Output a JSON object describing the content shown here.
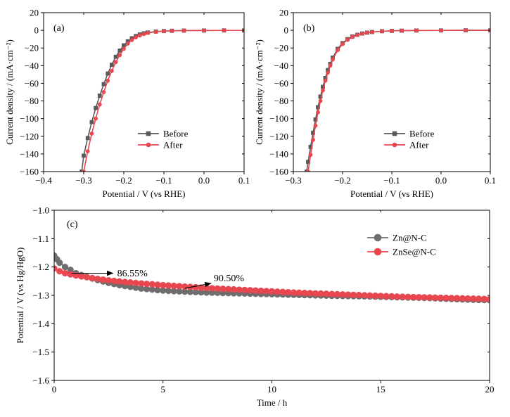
{
  "chart_data": [
    {
      "panel_label": "(a)",
      "type": "line",
      "xlabel": "Potential / V (vs RHE)",
      "ylabel": "Current density / (mA·cm⁻²)",
      "xlim": [
        -0.4,
        0.1
      ],
      "ylim": [
        -160,
        20
      ],
      "xticks": [
        -0.4,
        -0.3,
        -0.2,
        -0.1,
        0.0,
        0.1
      ],
      "xtick_labels": [
        "−0.4",
        "−0.3",
        "−0.2",
        "−0.1",
        "0.0",
        "0.1"
      ],
      "yticks": [
        20,
        0,
        -20,
        -40,
        -60,
        -80,
        -100,
        -120,
        -140,
        -160
      ],
      "ytick_labels": [
        "20",
        "0",
        "−20",
        "−40",
        "−60",
        "−80",
        "−100",
        "−120",
        "−140",
        "−160"
      ],
      "legend_position": "bottom-center",
      "grid": false,
      "series": [
        {
          "name": "Before",
          "color": "#5a5a5a",
          "marker": "square",
          "x": [
            -0.305,
            -0.3,
            -0.29,
            -0.28,
            -0.27,
            -0.26,
            -0.25,
            -0.24,
            -0.23,
            -0.22,
            -0.21,
            -0.2,
            -0.19,
            -0.18,
            -0.17,
            -0.16,
            -0.15,
            -0.14,
            -0.12,
            -0.1,
            -0.08,
            -0.05,
            0.0,
            0.05,
            0.1
          ],
          "y": [
            -160,
            -142,
            -122,
            -104,
            -88,
            -74,
            -61,
            -49,
            -39,
            -30,
            -23,
            -17,
            -12.5,
            -9,
            -6.5,
            -4.7,
            -3.4,
            -2.5,
            -1.4,
            -0.8,
            -0.5,
            -0.3,
            -0.2,
            -0.1,
            -0.1
          ]
        },
        {
          "name": "After",
          "color": "#e8474f",
          "marker": "circle",
          "x": [
            -0.3,
            -0.29,
            -0.28,
            -0.27,
            -0.26,
            -0.25,
            -0.24,
            -0.23,
            -0.22,
            -0.21,
            -0.2,
            -0.19,
            -0.18,
            -0.17,
            -0.16,
            -0.15,
            -0.14,
            -0.12,
            -0.1,
            -0.08,
            -0.05,
            0.0,
            0.05,
            0.1
          ],
          "y": [
            -160,
            -137,
            -117,
            -100,
            -84,
            -70,
            -57,
            -46,
            -36,
            -28,
            -21,
            -15,
            -11,
            -8,
            -5.8,
            -4.2,
            -3.0,
            -1.7,
            -1.0,
            -0.6,
            -0.3,
            -0.2,
            -0.1,
            -0.1
          ]
        }
      ]
    },
    {
      "panel_label": "(b)",
      "type": "line",
      "xlabel": "Potential / V (vs RHE)",
      "ylabel": "Current density / (mA·cm⁻²)",
      "xlim": [
        -0.3,
        0.1
      ],
      "ylim": [
        -160,
        20
      ],
      "xticks": [
        -0.3,
        -0.2,
        -0.1,
        0.0,
        0.1
      ],
      "xtick_labels": [
        "−0.3",
        "−0.2",
        "−0.1",
        "0.0",
        "0.1"
      ],
      "yticks": [
        20,
        0,
        -20,
        -40,
        -60,
        -80,
        -100,
        -120,
        -140,
        -160
      ],
      "ytick_labels": [
        "20",
        "0",
        "−20",
        "−40",
        "−60",
        "−80",
        "−100",
        "−120",
        "−140",
        "−160"
      ],
      "legend_position": "bottom-center",
      "grid": false,
      "series": [
        {
          "name": "Before",
          "color": "#5a5a5a",
          "marker": "square",
          "x": [
            -0.273,
            -0.27,
            -0.265,
            -0.26,
            -0.255,
            -0.25,
            -0.245,
            -0.24,
            -0.235,
            -0.23,
            -0.225,
            -0.22,
            -0.21,
            -0.2,
            -0.19,
            -0.18,
            -0.17,
            -0.16,
            -0.15,
            -0.14,
            -0.12,
            -0.1,
            -0.08,
            -0.05,
            0.0,
            0.05,
            0.1
          ],
          "y": [
            -160,
            -149,
            -132,
            -116,
            -101,
            -87,
            -75,
            -64,
            -54,
            -45,
            -38,
            -31,
            -21,
            -14.5,
            -10,
            -7,
            -5,
            -3.6,
            -2.6,
            -1.9,
            -1.0,
            -0.6,
            -0.4,
            -0.2,
            -0.1,
            0.0,
            0.0
          ]
        },
        {
          "name": "After",
          "color": "#e8474f",
          "marker": "circle",
          "x": [
            -0.27,
            -0.265,
            -0.26,
            -0.255,
            -0.25,
            -0.245,
            -0.24,
            -0.235,
            -0.23,
            -0.225,
            -0.22,
            -0.21,
            -0.2,
            -0.19,
            -0.18,
            -0.17,
            -0.16,
            -0.15,
            -0.14,
            -0.12,
            -0.1,
            -0.08,
            -0.05,
            0.0,
            0.05,
            0.1
          ],
          "y": [
            -160,
            -141,
            -124,
            -108,
            -93,
            -80,
            -68,
            -57,
            -48,
            -40,
            -33,
            -22.5,
            -15.5,
            -10.7,
            -7.5,
            -5.3,
            -3.8,
            -2.7,
            -2.0,
            -1.1,
            -0.6,
            -0.4,
            -0.2,
            -0.1,
            0.0,
            0.0
          ]
        }
      ]
    },
    {
      "panel_label": "(c)",
      "type": "line",
      "xlabel": "Time / h",
      "ylabel": "Potential / V (vs Hg/HgO)",
      "xlim": [
        0,
        20
      ],
      "ylim": [
        -1.6,
        -1.0
      ],
      "xticks": [
        0,
        5,
        10,
        15,
        20
      ],
      "xtick_labels": [
        "0",
        "5",
        "10",
        "15",
        "20"
      ],
      "yticks": [
        -1.0,
        -1.1,
        -1.2,
        -1.3,
        -1.4,
        -1.5,
        -1.6
      ],
      "ytick_labels": [
        "−1.0",
        "−1.1",
        "−1.2",
        "−1.3",
        "−1.4",
        "−1.5",
        "−1.6"
      ],
      "legend_position": "top-right",
      "grid": false,
      "annotations": [
        {
          "text": "86.55%",
          "arrow_from": [
            0.8,
            -1.222
          ],
          "arrow_to": [
            2.7,
            -1.222
          ]
        },
        {
          "text": "90.50%",
          "arrow_from": [
            6.0,
            -1.275
          ],
          "arrow_to": [
            7.2,
            -1.258
          ]
        }
      ],
      "series": [
        {
          "name": "Zn@N-C",
          "color": "#6e6e6e",
          "marker": "circle",
          "x": [
            0,
            0.25,
            0.5,
            0.75,
            1,
            1.5,
            2,
            2.5,
            3,
            4,
            5,
            6,
            7,
            8,
            9,
            10,
            11,
            12,
            13,
            14,
            15,
            16,
            17,
            18,
            19,
            20
          ],
          "y": [
            -1.16,
            -1.185,
            -1.2,
            -1.21,
            -1.222,
            -1.235,
            -1.246,
            -1.256,
            -1.264,
            -1.276,
            -1.283,
            -1.287,
            -1.29,
            -1.292,
            -1.294,
            -1.296,
            -1.298,
            -1.3,
            -1.302,
            -1.303,
            -1.305,
            -1.307,
            -1.309,
            -1.312,
            -1.315,
            -1.317
          ]
        },
        {
          "name": "ZnSe@N-C",
          "color": "#e8474f",
          "marker": "circle",
          "x": [
            0,
            0.25,
            0.5,
            0.75,
            1,
            1.5,
            2,
            2.5,
            3,
            4,
            5,
            6,
            7,
            8,
            9,
            10,
            11,
            12,
            13,
            14,
            15,
            16,
            17,
            18,
            19,
            20
          ],
          "y": [
            -1.205,
            -1.215,
            -1.222,
            -1.226,
            -1.23,
            -1.236,
            -1.242,
            -1.247,
            -1.251,
            -1.258,
            -1.264,
            -1.269,
            -1.274,
            -1.278,
            -1.282,
            -1.286,
            -1.29,
            -1.293,
            -1.296,
            -1.299,
            -1.302,
            -1.305,
            -1.307,
            -1.309,
            -1.311,
            -1.313
          ]
        }
      ]
    }
  ]
}
